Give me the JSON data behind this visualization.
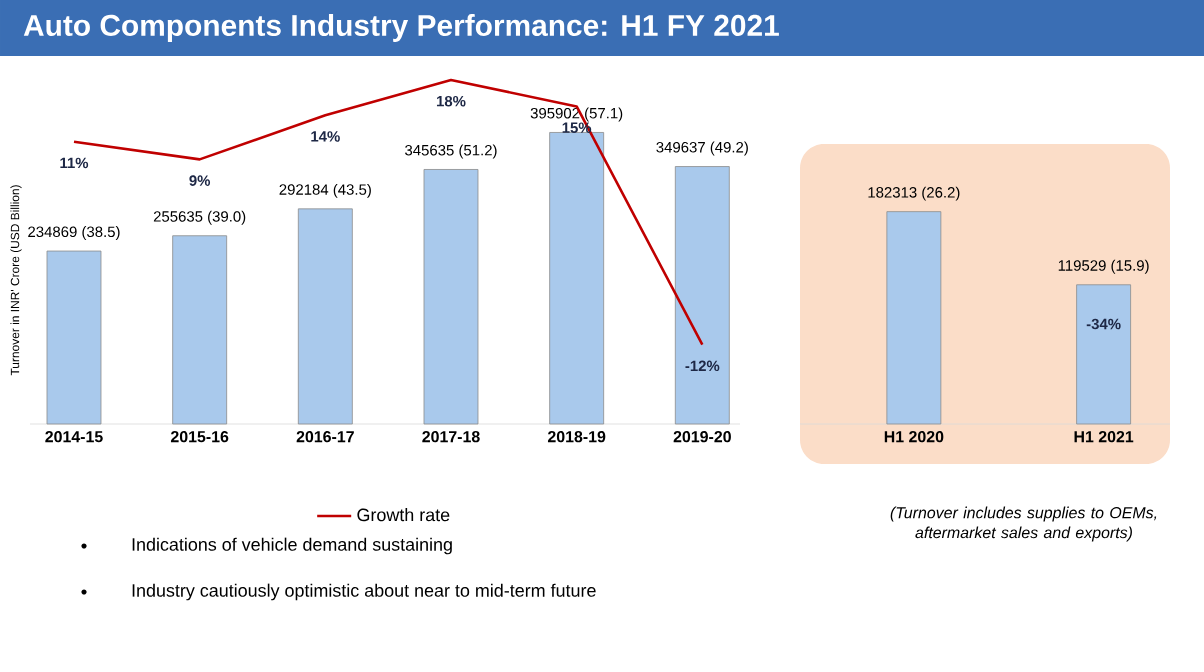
{
  "chart_data": [
    {
      "type": "bar",
      "title": "Auto Components Industry Performance: H1 FY 2021",
      "ylabel": "Turnover in INR' Crore (USD Billion)",
      "categories": [
        "2014-15",
        "2015-16",
        "2016-17",
        "2017-18",
        "2018-19",
        "2019-20"
      ],
      "series": [
        {
          "values": [
            234869,
            255635,
            292184,
            345635,
            395902,
            349637
          ],
          "value_labels": [
            "234869 (38.5)",
            "255635 (39.0)",
            "292184 (43.5)",
            "345635 (51.2)",
            "395902 (57.1)",
            "349637 (49.2)"
          ],
          "color": "#a9c9ec"
        },
        {
          "type": "line",
          "name": "Growth rate",
          "axis": "y2",
          "values": [
            11,
            9,
            14,
            18,
            15,
            -12
          ],
          "value_labels": [
            "11%",
            "9%",
            "14%",
            "18%",
            "15%",
            "-12%"
          ],
          "color": "#c00000"
        }
      ],
      "legend": "bottom",
      "tick_labels": "x",
      "annotations": [
        "Indications of vehicle demand sustaining",
        "Industry cautiously optimistic about near to mid-term future"
      ]
    },
    {
      "type": "bar",
      "categories": [
        "H1 2020",
        "H1 2021"
      ],
      "values": [
        182313,
        119529
      ],
      "value_labels": [
        "182313 (26.2)",
        "119529 (15.9)"
      ],
      "color": "#a9c9ec",
      "tick_labels": "x",
      "annotations": [
        "-34%",
        "(Turnover includes supplies to OEMs, aftermarket sales and exports)"
      ]
    }
  ]
}
